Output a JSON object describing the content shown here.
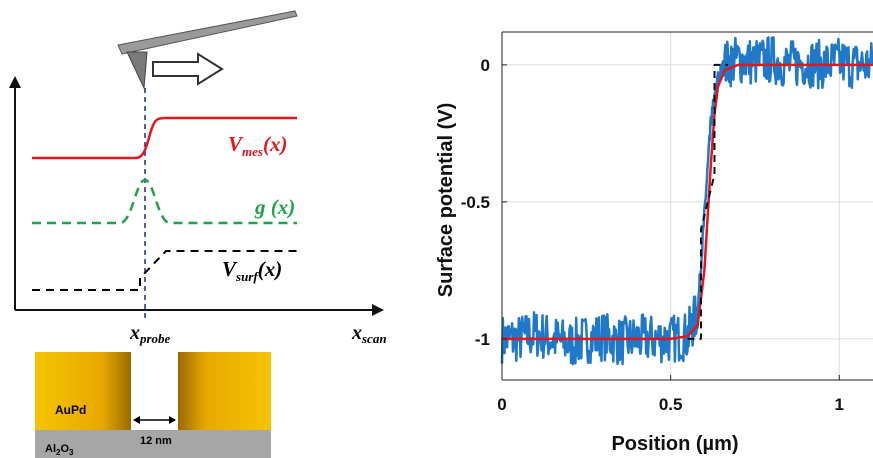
{
  "colors": {
    "measured": "#e8141c",
    "kernel": "#1fa34a",
    "surface": "#000000",
    "noisy": "#1f78c8",
    "fit": "#e8141c",
    "gold": "#f0b400",
    "substrate": "#a6a6a6"
  },
  "schematic": {
    "labels": {
      "v_mes": {
        "main": "V",
        "sub": "mes",
        "suffix": "(x)"
      },
      "g": "g (x)",
      "v_surf": {
        "main": "V",
        "sub": "surf",
        "suffix": "(x)"
      },
      "x_probe": {
        "main": "x",
        "sub": "probe"
      },
      "x_scan": {
        "main": "x",
        "sub": "scan"
      }
    },
    "sample": {
      "metal": "AuPd",
      "substrate": {
        "main": "Al",
        "sub1": "2",
        "mid": "O",
        "sub2": "3"
      },
      "gap": "12 nm"
    }
  },
  "chart_data": {
    "type": "line",
    "xlabel": "Position (µm)",
    "ylabel": "Surface potential (V)",
    "xlim": [
      0,
      1.1
    ],
    "ylim": [
      -1.15,
      0.12
    ],
    "xticks": [
      0,
      0.5,
      1
    ],
    "xtick_labels": [
      "0",
      "0.5",
      "1"
    ],
    "yticks": [
      0,
      -0.5,
      -1
    ],
    "ytick_labels": [
      "0",
      "-0.5",
      "-1"
    ],
    "grid": true,
    "series": [
      {
        "style": "noisy-blue",
        "x": [
          0.0,
          0.05,
          0.1,
          0.15,
          0.2,
          0.25,
          0.3,
          0.35,
          0.4,
          0.45,
          0.5,
          0.55,
          0.58,
          0.6,
          0.62,
          0.64,
          0.66,
          0.7,
          0.75,
          0.8,
          0.85,
          0.9,
          0.95,
          1.0,
          1.05,
          1.1
        ],
        "y": [
          -1.0,
          -1.0,
          -0.98,
          -1.0,
          -1.02,
          -1.0,
          -0.99,
          -1.01,
          -1.0,
          -1.0,
          -1.0,
          -0.99,
          -0.9,
          -0.55,
          -0.2,
          -0.05,
          0.0,
          0.02,
          0.01,
          0.02,
          0.0,
          0.01,
          0.0,
          0.01,
          0.0,
          0.0
        ]
      },
      {
        "style": "smooth-red",
        "x": [
          0.0,
          0.1,
          0.2,
          0.3,
          0.4,
          0.5,
          0.55,
          0.58,
          0.6,
          0.61,
          0.62,
          0.63,
          0.64,
          0.66,
          0.7,
          0.8,
          0.9,
          1.0,
          1.1
        ],
        "y": [
          -1.0,
          -1.0,
          -1.0,
          -1.0,
          -1.0,
          -1.0,
          -0.99,
          -0.95,
          -0.75,
          -0.55,
          -0.35,
          -0.18,
          -0.08,
          -0.02,
          0.0,
          0.0,
          0.0,
          0.0,
          0.0
        ]
      },
      {
        "style": "dashed-black",
        "x": [
          0.55,
          0.59,
          0.59,
          0.63,
          0.63,
          0.67
        ],
        "y": [
          -1.0,
          -1.0,
          -0.6,
          -0.4,
          0.0,
          0.0
        ]
      }
    ]
  }
}
